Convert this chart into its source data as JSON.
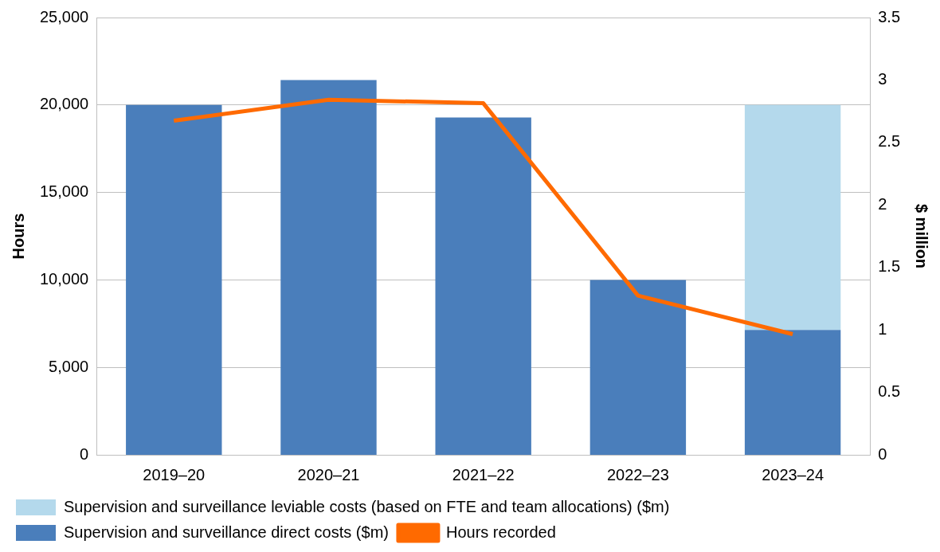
{
  "chart_data": {
    "type": "bar",
    "categories": [
      "2019–20",
      "2020–21",
      "2021–22",
      "2022–23",
      "2023–24"
    ],
    "ylabel": "Hours",
    "y2label": "$ million",
    "stacked": true,
    "grid": "y",
    "legend": "bottom",
    "ylim": [
      0,
      25000
    ],
    "yticks": [
      {
        "value": 0,
        "label": "0"
      },
      {
        "value": 5000,
        "label": "5,000"
      },
      {
        "value": 10000,
        "label": "10,000"
      },
      {
        "value": 15000,
        "label": "15,000"
      },
      {
        "value": 20000,
        "label": "20,000"
      },
      {
        "value": 25000,
        "label": "25,000"
      }
    ],
    "y2lim": [
      0,
      3.5
    ],
    "y2ticks": [
      0,
      0.5,
      1,
      1.5,
      2,
      2.5,
      3,
      3.5
    ],
    "series": [
      {
        "name": "Supervision and surveillance direct costs ($m)",
        "color": "#4a7ebb",
        "axis": "y2",
        "values": [
          2.8,
          3.0,
          2.7,
          1.4,
          1.0
        ]
      },
      {
        "name": "Supervision and surveillance leviable costs (based on FTE and team allocations) ($m)",
        "color": "#b4d9ec",
        "axis": "y2",
        "values": [
          null,
          null,
          null,
          null,
          1.8
        ]
      },
      {
        "name": "Hours recorded",
        "type": "line",
        "color": "#ff6a00",
        "axis": "y",
        "values": [
          19100,
          20300,
          20100,
          9100,
          6900
        ]
      }
    ]
  }
}
